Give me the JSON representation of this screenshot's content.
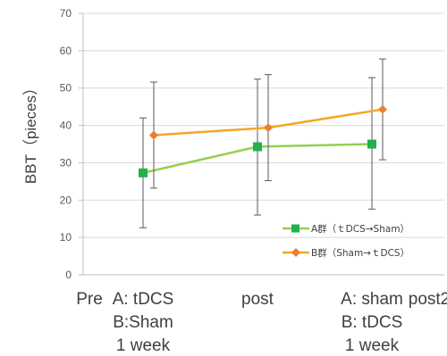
{
  "chart_data": {
    "type": "line",
    "ylabel": "BBT（pieces）",
    "ylim": [
      0,
      70
    ],
    "yticks": [
      0,
      10,
      20,
      30,
      40,
      50,
      60,
      70
    ],
    "grid": true,
    "legend_position": "bottom-right",
    "x_labels": [
      {
        "lines": [
          "Pre"
        ]
      },
      {
        "lines": [
          "A: tDCS",
          "B:Sham",
          "1 week"
        ]
      },
      {
        "lines": [
          "post"
        ]
      },
      {
        "lines": [
          "A: sham",
          "B: tDCS",
          "1 week"
        ]
      },
      {
        "lines": [
          "post2"
        ]
      }
    ],
    "series": [
      {
        "name": "A群（ｔDCS→Sham）",
        "color": "#92d050",
        "marker": "square",
        "points": [
          {
            "x": "A: tDCS B:Sham 1 week",
            "y": 27.3,
            "err_low": 12.6,
            "err_high": 42.0
          },
          {
            "x": "post",
            "y": 34.3,
            "err_low": 16.0,
            "err_high": 52.4
          },
          {
            "x": "A: sham B: tDCS 1 week",
            "y": 35.0,
            "err_low": 17.6,
            "err_high": 52.8
          }
        ]
      },
      {
        "name": "B群（Sham→ｔDCS）",
        "color": "#f5a623",
        "marker": "diamond",
        "points": [
          {
            "x": "A: tDCS B:Sham 1 week",
            "y": 37.4,
            "err_low": 23.2,
            "err_high": 51.6
          },
          {
            "x": "post",
            "y": 39.4,
            "err_low": 25.2,
            "err_high": 53.6
          },
          {
            "x": "A: sham B: tDCS 1 week",
            "y": 44.3,
            "err_low": 30.8,
            "err_high": 57.8
          }
        ]
      }
    ]
  }
}
